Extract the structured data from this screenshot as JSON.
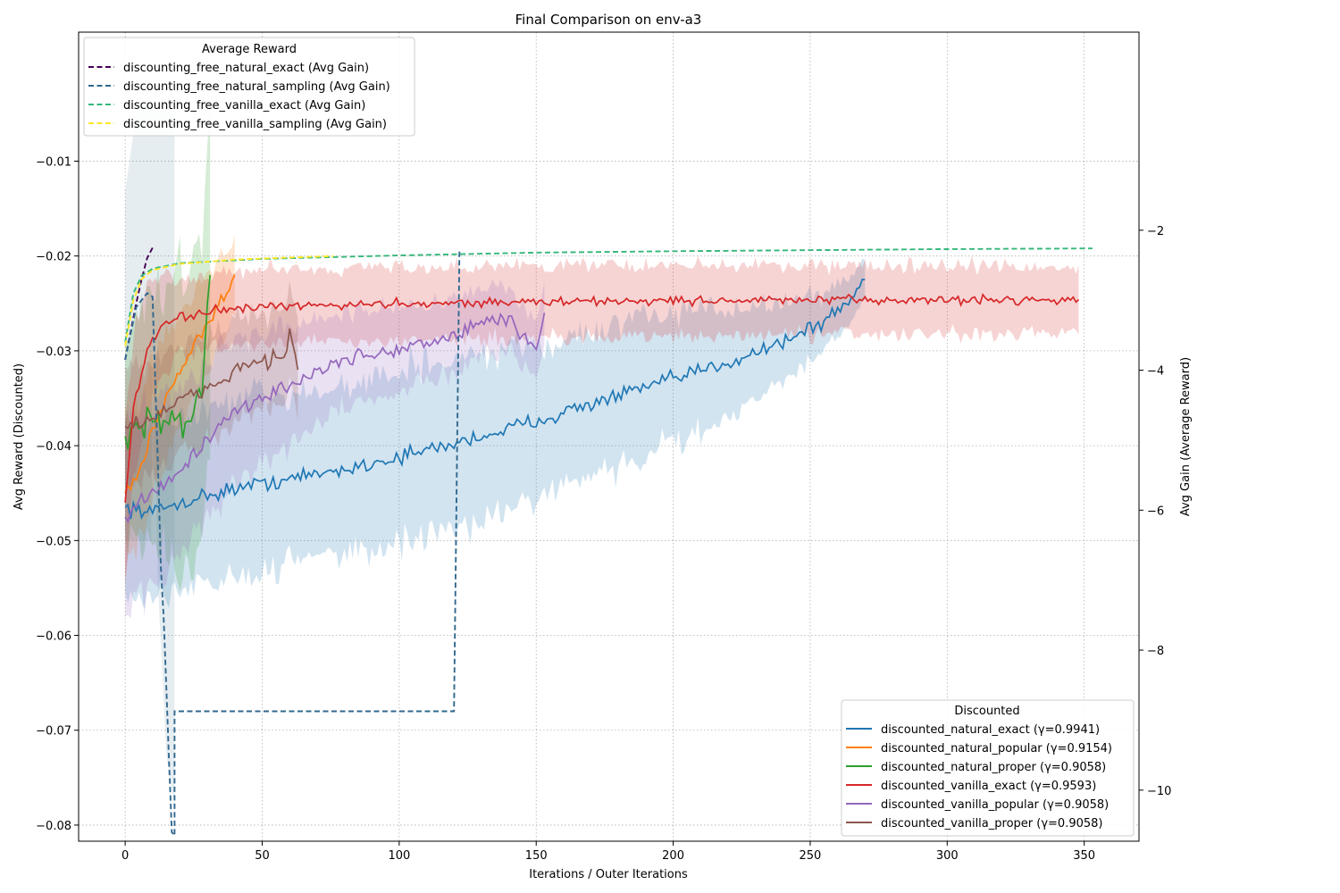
{
  "chart_data": {
    "type": "line",
    "title": "Final Comparison on env-a3",
    "xlabel": "Iterations / Outer Iterations",
    "ylabel": "Avg Reward (Discounted)",
    "ylabel_right": "Avg Gain (Average Reward)",
    "xlim": [
      -17,
      370
    ],
    "ylim": [
      -0.0817,
      0.0036
    ],
    "ylim_right": [
      -10.73,
      0.83
    ],
    "grid": true,
    "x_ticks": [
      0,
      50,
      100,
      150,
      200,
      250,
      300,
      350
    ],
    "y_ticks": [
      -0.08,
      -0.07,
      -0.06,
      -0.05,
      -0.04,
      -0.03,
      -0.02,
      -0.01
    ],
    "y_tick_labels": [
      "−0.08",
      "−0.07",
      "−0.06",
      "−0.05",
      "−0.04",
      "−0.03",
      "−0.02",
      "−0.01"
    ],
    "y_right_ticks": [
      -10,
      -8,
      -6,
      -4,
      -2
    ],
    "y_right_tick_labels": [
      "−10",
      "−8",
      "−6",
      "−4",
      "−2"
    ],
    "legend_left": {
      "title": "Average Reward",
      "placement": "upper-left",
      "entries": [
        "discounting_free_natural_exact (Avg Gain)",
        "discounting_free_natural_sampling (Avg Gain)",
        "discounting_free_vanilla_exact (Avg Gain)",
        "discounting_free_vanilla_sampling (Avg Gain)"
      ]
    },
    "legend_right": {
      "title": "Discounted",
      "placement": "lower-right",
      "entries": [
        "discounted_natural_exact (γ=0.9941)",
        "discounted_natural_popular (γ=0.9154)",
        "discounted_natural_proper (γ=0.9058)",
        "discounted_vanilla_exact (γ=0.9593)",
        "discounted_vanilla_popular (γ=0.9058)",
        "discounted_vanilla_proper (γ=0.9058)"
      ]
    },
    "series_discounted": [
      {
        "name": "discounted_natural_exact",
        "color": "#1f77b4",
        "anchors": [
          [
            0,
            -0.0465
          ],
          [
            10,
            -0.047
          ],
          [
            20,
            -0.046
          ],
          [
            40,
            -0.0445
          ],
          [
            60,
            -0.0435
          ],
          [
            80,
            -0.0425
          ],
          [
            100,
            -0.0412
          ],
          [
            120,
            -0.0398
          ],
          [
            140,
            -0.0382
          ],
          [
            160,
            -0.0365
          ],
          [
            180,
            -0.0347
          ],
          [
            200,
            -0.033
          ],
          [
            220,
            -0.0312
          ],
          [
            240,
            -0.029
          ],
          [
            255,
            -0.027
          ],
          [
            265,
            -0.0245
          ],
          [
            270,
            -0.0225
          ]
        ],
        "noise": 0.0012,
        "band": [
          [
            0,
            0.009
          ],
          [
            100,
            0.009
          ],
          [
            200,
            0.007
          ],
          [
            270,
            0.002
          ]
        ]
      },
      {
        "name": "discounted_natural_popular",
        "color": "#ff7f0e",
        "anchors": [
          [
            0,
            -0.045
          ],
          [
            5,
            -0.043
          ],
          [
            10,
            -0.038
          ],
          [
            20,
            -0.032
          ],
          [
            30,
            -0.027
          ],
          [
            37,
            -0.024
          ],
          [
            40,
            -0.022
          ]
        ],
        "noise": 0.0012,
        "band": [
          [
            0,
            0.008
          ],
          [
            40,
            0.004
          ]
        ]
      },
      {
        "name": "discounted_natural_proper",
        "color": "#2ca02c",
        "anchors": [
          [
            0,
            -0.039
          ],
          [
            10,
            -0.037
          ],
          [
            20,
            -0.037
          ],
          [
            28,
            -0.036
          ],
          [
            31,
            -0.022
          ]
        ],
        "noise": 0.0035,
        "band": [
          [
            0,
            0.01
          ],
          [
            31,
            0.018
          ]
        ]
      },
      {
        "name": "discounted_vanilla_exact",
        "color": "#d62728",
        "anchors": [
          [
            0,
            -0.046
          ],
          [
            3,
            -0.036
          ],
          [
            8,
            -0.03
          ],
          [
            15,
            -0.027
          ],
          [
            30,
            -0.0258
          ],
          [
            60,
            -0.0253
          ],
          [
            100,
            -0.025
          ],
          [
            200,
            -0.0247
          ],
          [
            348,
            -0.0246
          ]
        ],
        "noise": 0.0007,
        "band": [
          [
            0,
            0.008
          ],
          [
            20,
            0.004
          ],
          [
            348,
            0.0035
          ]
        ]
      },
      {
        "name": "discounted_vanilla_popular",
        "color": "#9467bd",
        "anchors": [
          [
            0,
            -0.0475
          ],
          [
            20,
            -0.0425
          ],
          [
            40,
            -0.0365
          ],
          [
            60,
            -0.0335
          ],
          [
            80,
            -0.031
          ],
          [
            100,
            -0.0298
          ],
          [
            120,
            -0.0285
          ],
          [
            130,
            -0.027
          ],
          [
            140,
            -0.0265
          ],
          [
            150,
            -0.03
          ],
          [
            153,
            -0.026
          ]
        ],
        "noise": 0.0012,
        "band": [
          [
            0,
            0.01
          ],
          [
            80,
            0.005
          ],
          [
            153,
            0.003
          ]
        ]
      },
      {
        "name": "discounted_vanilla_proper",
        "color": "#8c564b",
        "anchors": [
          [
            0,
            -0.038
          ],
          [
            10,
            -0.037
          ],
          [
            20,
            -0.0355
          ],
          [
            30,
            -0.034
          ],
          [
            40,
            -0.032
          ],
          [
            50,
            -0.031
          ],
          [
            58,
            -0.0305
          ],
          [
            60,
            -0.028
          ],
          [
            63,
            -0.032
          ]
        ],
        "noise": 0.0014,
        "band": [
          [
            0,
            0.006
          ],
          [
            63,
            0.005
          ]
        ]
      }
    ],
    "series_avg_gain": [
      {
        "name": "discounting_free_natural_exact",
        "color": "#440154",
        "anchors": [
          [
            0,
            -3.85
          ],
          [
            2,
            -3.45
          ],
          [
            4,
            -3.05
          ],
          [
            6,
            -2.7
          ],
          [
            8,
            -2.4
          ],
          [
            10,
            -2.25
          ]
        ]
      },
      {
        "name": "discounting_free_natural_sampling",
        "color": "#31688e",
        "anchors": [
          [
            0,
            -3.85
          ],
          [
            4,
            -3.1
          ],
          [
            8,
            -2.9
          ],
          [
            10,
            -2.95
          ],
          [
            11,
            -4.2
          ],
          [
            12,
            -5.4
          ],
          [
            13,
            -6.8
          ],
          [
            14,
            -7.5
          ],
          [
            15,
            -8.5
          ],
          [
            16,
            -9.6
          ],
          [
            17,
            -10.6
          ],
          [
            18,
            -10.65
          ]
        ]
      },
      {
        "name": "discounting_free_vanilla_exact",
        "color": "#35b779",
        "anchors": [
          [
            0,
            -3.6
          ],
          [
            3,
            -2.9
          ],
          [
            6,
            -2.65
          ],
          [
            10,
            -2.55
          ],
          [
            20,
            -2.47
          ],
          [
            50,
            -2.41
          ],
          [
            100,
            -2.36
          ],
          [
            150,
            -2.32
          ],
          [
            200,
            -2.3
          ],
          [
            300,
            -2.27
          ],
          [
            353,
            -2.26
          ]
        ]
      },
      {
        "name": "discounting_free_vanilla_sampling",
        "color": "#fde725",
        "anchors": [
          [
            0,
            -3.65
          ],
          [
            3,
            -3.0
          ],
          [
            6,
            -2.7
          ],
          [
            10,
            -2.57
          ],
          [
            20,
            -2.48
          ],
          [
            40,
            -2.42
          ],
          [
            60,
            -2.39
          ],
          [
            76,
            -2.37
          ]
        ]
      }
    ],
    "natural_sampling_step_path": [
      [
        18,
        -0.068
      ],
      [
        120,
        -0.068
      ],
      [
        122,
        -0.0195
      ]
    ],
    "natural_sampling_spread": [
      [
        10,
        -0.03
      ],
      [
        12,
        -0.055
      ],
      [
        15,
        -0.0725
      ],
      [
        18,
        -0.078
      ]
    ]
  }
}
